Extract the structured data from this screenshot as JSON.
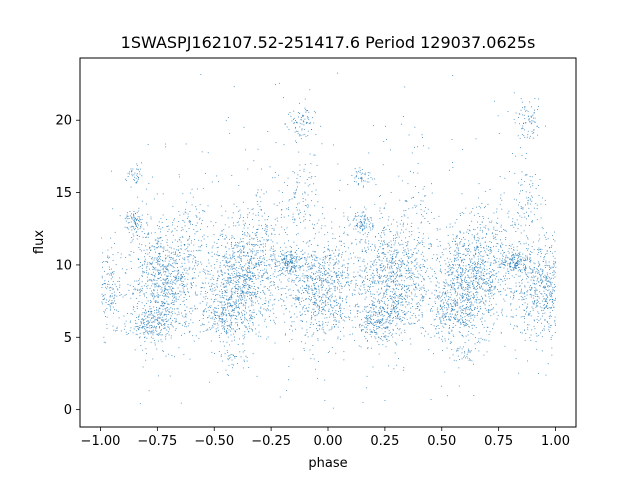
{
  "chart_data": {
    "type": "scatter",
    "title": "1SWASPJ162107.52-251417.6 Period 129037.0625s",
    "xlabel": "phase",
    "ylabel": "flux",
    "xlim": [
      -1.09,
      1.09
    ],
    "ylim": [
      -1.2,
      24.3
    ],
    "x_ticks": [
      -1.0,
      -0.75,
      -0.5,
      -0.25,
      0.0,
      0.25,
      0.5,
      0.75,
      1.0
    ],
    "x_tick_labels": [
      "−1.00",
      "−0.75",
      "−0.50",
      "−0.25",
      "0.00",
      "0.25",
      "0.50",
      "0.75",
      "1.00"
    ],
    "y_ticks": [
      0,
      5,
      10,
      15,
      20
    ],
    "y_tick_labels": [
      "0",
      "5",
      "10",
      "15",
      "20"
    ],
    "grid": false,
    "point_color": "#1f77b4",
    "series": [
      {
        "description_of_structure": "light curve folded twice (phase -1 to 1), dense cloud of points",
        "clusters": [
          {
            "x_center": -0.72,
            "x_spread": 0.08,
            "y_center": 9.0,
            "y_spread": 2.0,
            "n": 900
          },
          {
            "x_center": -0.38,
            "x_spread": 0.08,
            "y_center": 9.0,
            "y_spread": 1.8,
            "n": 900
          },
          {
            "x_center": -0.05,
            "x_spread": 0.08,
            "y_center": 8.5,
            "y_spread": 1.8,
            "n": 700
          },
          {
            "x_center": -0.18,
            "x_spread": 0.03,
            "y_center": 10.2,
            "y_spread": 0.4,
            "n": 150
          },
          {
            "x_center": -0.78,
            "x_spread": 0.05,
            "y_center": 6.0,
            "y_spread": 0.6,
            "n": 200
          },
          {
            "x_center": -0.45,
            "x_spread": 0.06,
            "y_center": 6.5,
            "y_spread": 0.8,
            "n": 200
          },
          {
            "x_center": -0.85,
            "x_spread": 0.02,
            "y_center": 13.0,
            "y_spread": 0.4,
            "n": 80
          },
          {
            "x_center": -0.85,
            "x_spread": 0.02,
            "y_center": 16.2,
            "y_spread": 0.4,
            "n": 40
          },
          {
            "x_center": -0.12,
            "x_spread": 0.03,
            "y_center": 19.8,
            "y_spread": 0.7,
            "n": 80
          },
          {
            "x_center": -0.13,
            "x_spread": 0.04,
            "y_center": 14.5,
            "y_spread": 1.2,
            "n": 80
          },
          {
            "x_center": -0.97,
            "x_spread": 0.03,
            "y_center": 8.5,
            "y_spread": 1.6,
            "n": 150
          },
          {
            "x_center": -0.28,
            "x_spread": 0.06,
            "y_center": 12.0,
            "y_spread": 1.8,
            "n": 120
          },
          {
            "x_center": -0.42,
            "x_spread": 0.04,
            "y_center": 3.8,
            "y_spread": 0.5,
            "n": 40
          },
          {
            "x_center": -0.6,
            "x_spread": 0.04,
            "y_center": 13.0,
            "y_spread": 1.5,
            "n": 60
          },
          {
            "x_center": 0.28,
            "x_spread": 0.08,
            "y_center": 9.0,
            "y_spread": 2.0,
            "n": 900
          },
          {
            "x_center": 0.62,
            "x_spread": 0.08,
            "y_center": 9.0,
            "y_spread": 1.8,
            "n": 900
          },
          {
            "x_center": 0.95,
            "x_spread": 0.08,
            "y_center": 8.5,
            "y_spread": 1.8,
            "n": 700
          },
          {
            "x_center": 0.82,
            "x_spread": 0.03,
            "y_center": 10.2,
            "y_spread": 0.4,
            "n": 150
          },
          {
            "x_center": 0.22,
            "x_spread": 0.05,
            "y_center": 6.0,
            "y_spread": 0.6,
            "n": 200
          },
          {
            "x_center": 0.55,
            "x_spread": 0.06,
            "y_center": 6.5,
            "y_spread": 0.8,
            "n": 200
          },
          {
            "x_center": 0.15,
            "x_spread": 0.02,
            "y_center": 13.0,
            "y_spread": 0.4,
            "n": 80
          },
          {
            "x_center": 0.15,
            "x_spread": 0.02,
            "y_center": 16.2,
            "y_spread": 0.4,
            "n": 40
          },
          {
            "x_center": 0.88,
            "x_spread": 0.03,
            "y_center": 19.8,
            "y_spread": 0.7,
            "n": 80
          },
          {
            "x_center": 0.87,
            "x_spread": 0.04,
            "y_center": 14.5,
            "y_spread": 1.2,
            "n": 80
          },
          {
            "x_center": 0.03,
            "x_spread": 0.03,
            "y_center": 8.5,
            "y_spread": 1.6,
            "n": 80
          },
          {
            "x_center": 0.72,
            "x_spread": 0.06,
            "y_center": 12.0,
            "y_spread": 1.8,
            "n": 120
          },
          {
            "x_center": 0.58,
            "x_spread": 0.04,
            "y_center": 3.8,
            "y_spread": 0.5,
            "n": 40
          },
          {
            "x_center": 0.4,
            "x_spread": 0.04,
            "y_center": 13.0,
            "y_spread": 1.5,
            "n": 60
          },
          {
            "x_center": 0.0,
            "x_spread": 0.55,
            "y_center": 11.0,
            "y_spread": 6.5,
            "n": 500
          }
        ]
      }
    ]
  }
}
